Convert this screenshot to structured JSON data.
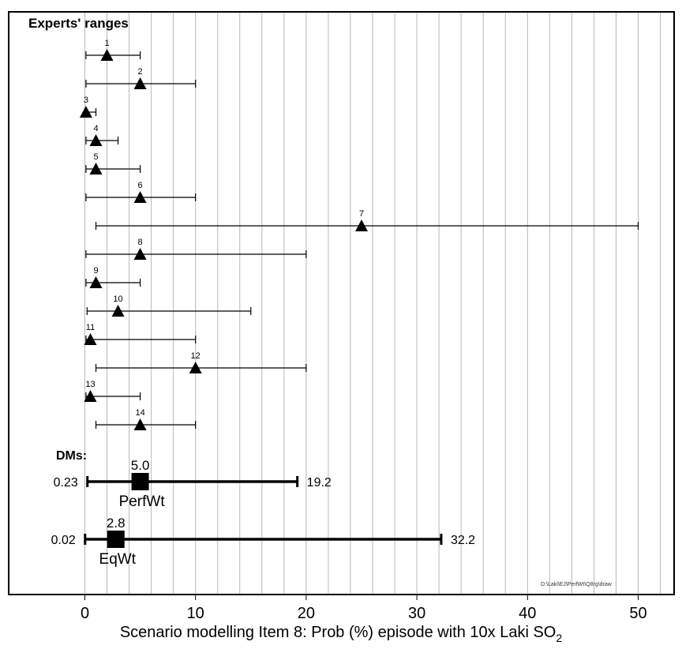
{
  "chart_data": {
    "type": "range",
    "title": "Experts' ranges",
    "xlabel": "Scenario modelling Item 8: Prob (%) episode with 10x Laki SO",
    "xlabel_subscript": "2",
    "xlim": [
      -7,
      53
    ],
    "x_ticks": [
      0,
      10,
      20,
      30,
      40,
      50
    ],
    "gridlines_every": 2,
    "grid": true,
    "footnote": "D:\\Laki\\EJ\\PerfWt\\Q8rg\\draw",
    "experts": [
      {
        "label": "1",
        "low": 0.1,
        "median": 2,
        "high": 5
      },
      {
        "label": "2",
        "low": 0.1,
        "median": 5,
        "high": 10
      },
      {
        "label": "3",
        "low": 0.0,
        "median": 0.1,
        "high": 1
      },
      {
        "label": "4",
        "low": 0.1,
        "median": 1,
        "high": 3
      },
      {
        "label": "5",
        "low": 0.1,
        "median": 1,
        "high": 5
      },
      {
        "label": "6",
        "low": 0.1,
        "median": 5,
        "high": 10
      },
      {
        "label": "7",
        "low": 1,
        "median": 25,
        "high": 50
      },
      {
        "label": "8",
        "low": 0.1,
        "median": 5,
        "high": 20
      },
      {
        "label": "9",
        "low": 0.1,
        "median": 1,
        "high": 5
      },
      {
        "label": "10",
        "low": 0.2,
        "median": 3,
        "high": 15
      },
      {
        "label": "11",
        "low": 0.1,
        "median": 0.5,
        "high": 10
      },
      {
        "label": "12",
        "low": 1,
        "median": 10,
        "high": 20
      },
      {
        "label": "13",
        "low": 0.1,
        "median": 0.5,
        "high": 5
      },
      {
        "label": "14",
        "low": 1,
        "median": 5,
        "high": 10
      }
    ],
    "dm_title": "DMs:",
    "decision_makers": [
      {
        "name": "PerfWt",
        "low": 0.23,
        "median": 5.0,
        "high": 19.2,
        "low_label": "0.23",
        "median_label": "5.0",
        "high_label": "19.2"
      },
      {
        "name": "EqWt",
        "low": 0.02,
        "median": 2.8,
        "high": 32.2,
        "low_label": "0.02",
        "median_label": "2.8",
        "high_label": "32.2"
      }
    ]
  }
}
